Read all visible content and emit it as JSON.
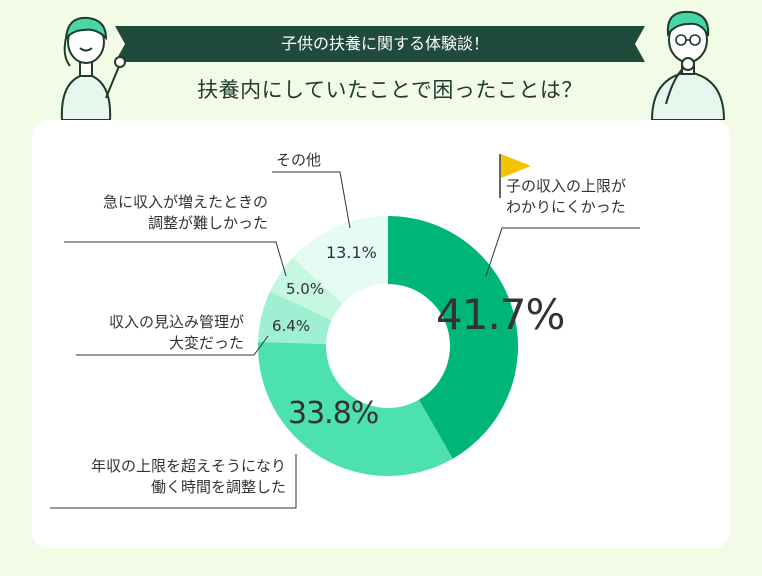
{
  "header": {
    "banner": "子供の扶養に関する体験談！",
    "subtitle": "扶養内にしていたことで困ったことは？"
  },
  "colors": {
    "background": "#f2fbe6",
    "banner": "#1f4a3c",
    "card": "#ffffff",
    "flag": "#f5c400",
    "leader": "#333333"
  },
  "chart_data": {
    "type": "pie",
    "variant": "donut",
    "slices": [
      {
        "label_lines": [
          "子の収入の上限が",
          "わかりにくかった"
        ],
        "value": 41.7,
        "value_label": "41.7%",
        "color": "#00b578"
      },
      {
        "label_lines": [
          "年収の上限を超えそうになり",
          "働く時間を調整した"
        ],
        "value": 33.8,
        "value_label": "33.8%",
        "color": "#4de0b0"
      },
      {
        "label_lines": [
          "収入の見込み管理が",
          "大変だった"
        ],
        "value": 6.4,
        "value_label": "6.4%",
        "color": "#9ff0d2"
      },
      {
        "label_lines": [
          "急に収入が増えたときの",
          "調整が難しかった"
        ],
        "value": 5.0,
        "value_label": "5.0%",
        "color": "#c6f7e3"
      },
      {
        "label_lines": [
          "その他"
        ],
        "value": 13.1,
        "value_label": "13.1%",
        "color": "#e6fcf3"
      }
    ],
    "start_angle": "12 o'clock",
    "direction": "clockwise"
  }
}
